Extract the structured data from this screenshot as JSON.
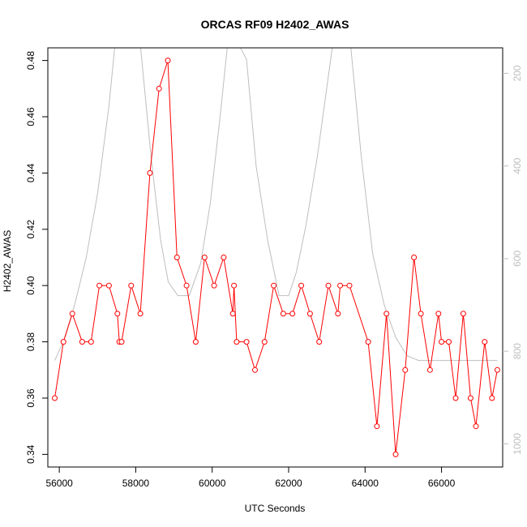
{
  "chart_data": {
    "type": "line",
    "title": "ORCAS RF09 H2402_AWAS",
    "xlabel": "UTC Seconds",
    "ylabel": "H2402_AWAS",
    "xlim": [
      55700,
      67600
    ],
    "ylim": [
      0.3355,
      0.4845
    ],
    "x_ticks": [
      56000,
      58000,
      60000,
      62000,
      64000,
      66000
    ],
    "x_tick_labels": [
      "56000",
      "58000",
      "60000",
      "62000",
      "64000",
      "66000"
    ],
    "y_ticks": [
      0.34,
      0.36,
      0.38,
      0.4,
      0.42,
      0.44,
      0.46,
      0.48
    ],
    "y_tick_labels": [
      "0.34",
      "0.36",
      "0.38",
      "0.40",
      "0.42",
      "0.44",
      "0.46",
      "0.48"
    ],
    "y2_ticks": [
      200,
      400,
      600,
      800,
      1000
    ],
    "y2_tick_labels": [
      "200",
      "400",
      "600",
      "800",
      "1000"
    ],
    "y2lim": [
      1050,
      145
    ],
    "grid": false,
    "series": [
      {
        "color": "#ff0000",
        "style": "line+open-circles",
        "x": [
          55880,
          56110,
          56340,
          56600,
          56830,
          57050,
          57300,
          57520,
          57570,
          57630,
          57880,
          58120,
          58370,
          58610,
          58840,
          59080,
          59330,
          59570,
          59800,
          60050,
          60300,
          60540,
          60570,
          60640,
          60900,
          61120,
          61370,
          61610,
          61860,
          62100,
          62330,
          62560,
          62800,
          63040,
          63290,
          63350,
          63590,
          64080,
          64310,
          64560,
          64800,
          65050,
          65280,
          65460,
          65700,
          65920,
          66000,
          66190,
          66370,
          66570,
          66760,
          66900,
          67130,
          67320,
          67460
        ],
        "values": [
          0.36,
          0.38,
          0.39,
          0.38,
          0.38,
          0.4,
          0.4,
          0.39,
          0.38,
          0.38,
          0.4,
          0.39,
          0.44,
          0.47,
          0.48,
          0.41,
          0.4,
          0.38,
          0.41,
          0.4,
          0.41,
          0.39,
          0.4,
          0.38,
          0.38,
          0.37,
          0.38,
          0.4,
          0.39,
          0.39,
          0.4,
          0.39,
          0.38,
          0.4,
          0.39,
          0.4,
          0.4,
          0.38,
          0.35,
          0.39,
          0.34,
          0.37,
          0.41,
          0.39,
          0.37,
          0.39,
          0.38,
          0.38,
          0.36,
          0.39,
          0.36,
          0.35,
          0.38,
          0.36,
          0.37
        ]
      },
      {
        "color": "#bebebe",
        "style": "line",
        "axis": "right",
        "x": [
          55880,
          56100,
          56400,
          56700,
          57000,
          57300,
          57550,
          58100,
          58400,
          58650,
          58850,
          59100,
          59400,
          59700,
          59950,
          60200,
          60450,
          60900,
          61150,
          61450,
          61750,
          62000,
          62200,
          62450,
          62750,
          63050,
          63300,
          63600,
          63900,
          64200,
          64500,
          64800,
          65100,
          65400,
          66000,
          66600,
          67460
        ],
        "values": [
          820,
          780,
          700,
          600,
          460,
          270,
          60,
          120,
          380,
          560,
          650,
          680,
          680,
          610,
          480,
          300,
          100,
          170,
          400,
          560,
          680,
          680,
          630,
          530,
          380,
          200,
          50,
          120,
          380,
          590,
          700,
          770,
          810,
          820,
          820,
          820,
          820
        ]
      }
    ]
  }
}
